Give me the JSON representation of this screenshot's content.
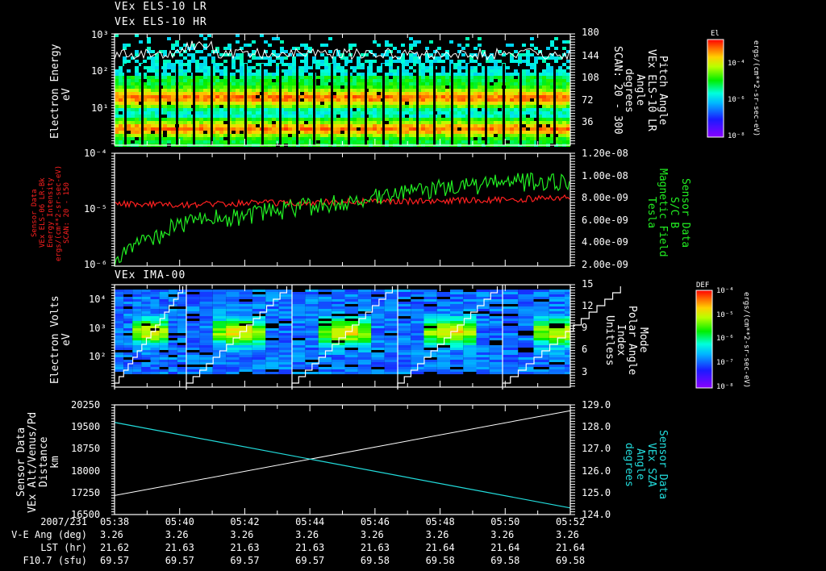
{
  "panels": [
    {
      "id": "els",
      "titles": [
        "VEx ELS-10 LR",
        "VEx ELS-10 HR"
      ],
      "left_axis": {
        "label_lines": [
          "Electron Energy",
          "eV"
        ],
        "ticks": [
          "10³",
          "10²",
          "10¹"
        ],
        "top_tick": "10³"
      },
      "right_axis": {
        "label_lines": [
          "Pitch Angle",
          "VEx ELS-10 LR",
          "Angle",
          "degrees",
          "SCAN: 20 - 300"
        ],
        "ticks": [
          "180",
          "144",
          "108",
          "72",
          "36"
        ]
      },
      "colorbar": {
        "title": "El",
        "ticks": [
          "10⁻⁴",
          "10⁻⁶",
          "10⁻⁸"
        ],
        "units": "ergs/(cm**2-sr-sec-eV)"
      }
    },
    {
      "id": "intensity-bfield",
      "left_axis": {
        "label_lines": [
          "Sensor Data",
          "VEx ELS-06 LR-Bk",
          "Energy Intensity",
          "ergs/(cm**2-sr-sec-eV)",
          "SCAN: 20 - 150"
        ],
        "ticks": [
          "10⁻⁴",
          "10⁻⁵",
          "10⁻⁶"
        ],
        "color": "#ff2020"
      },
      "right_axis": {
        "label_lines": [
          "Sensor Data",
          "S/C  B",
          "Magnetic Field",
          "Tesla"
        ],
        "ticks": [
          "1.20e-08",
          "1.00e-08",
          "8.00e-09",
          "6.00e-09",
          "4.00e-09",
          "2.00e-09"
        ],
        "color": "#22ee22"
      }
    },
    {
      "id": "ima",
      "titles": [
        "VEx IMA-00"
      ],
      "left_axis": {
        "label_lines": [
          "Electron Volts",
          "eV"
        ],
        "ticks": [
          "10⁴",
          "10³",
          "10²"
        ]
      },
      "right_axis": {
        "label_lines": [
          "Mode",
          "Polar Angle",
          "Index",
          "Unitless"
        ],
        "ticks": [
          "15",
          "12",
          "9",
          "6",
          "3"
        ]
      },
      "colorbar": {
        "title": "DEF",
        "ticks": [
          "10⁻⁴",
          "10⁻⁵",
          "10⁻⁶",
          "10⁻⁷",
          "10⁻⁸"
        ],
        "units": "ergs/(cm**2-sr-sec-eV)"
      }
    },
    {
      "id": "alt-sza",
      "left_axis": {
        "label_lines": [
          "Sensor Data",
          "VEx Alt/Venus/Pd",
          "Distance",
          "km"
        ],
        "ticks": [
          "20250",
          "19500",
          "18750",
          "18000",
          "17250",
          "16500"
        ]
      },
      "right_axis": {
        "label_lines": [
          "Sensor Data",
          "VEx SZA",
          "Angle",
          "degrees"
        ],
        "ticks": [
          "129.0",
          "128.0",
          "127.0",
          "126.0",
          "125.0",
          "124.0"
        ],
        "color": "#22dddd"
      }
    }
  ],
  "footer": {
    "rows": [
      {
        "label": "2007/231",
        "values": [
          "05:38",
          "05:40",
          "05:42",
          "05:44",
          "05:46",
          "05:48",
          "05:50",
          "05:52"
        ]
      },
      {
        "label": "V-E Ang (deg)",
        "values": [
          "3.26",
          "3.26",
          "3.26",
          "3.26",
          "3.26",
          "3.26",
          "3.26",
          "3.26"
        ]
      },
      {
        "label": "LST (hr)",
        "values": [
          "21.62",
          "21.63",
          "21.63",
          "21.63",
          "21.63",
          "21.64",
          "21.64",
          "21.64"
        ]
      },
      {
        "label": "F10.7 (sfu)",
        "values": [
          "69.57",
          "69.57",
          "69.57",
          "69.57",
          "69.58",
          "69.58",
          "69.58",
          "69.58"
        ]
      }
    ]
  },
  "chart_data": [
    {
      "type": "heatmap",
      "title": "VEx ELS-10 LR / VEx ELS-10 HR",
      "xlabel": "UT (2007/231)",
      "ylabel": "Electron Energy (eV)",
      "x": [
        "05:38",
        "05:40",
        "05:42",
        "05:44",
        "05:46",
        "05:48",
        "05:50",
        "05:52"
      ],
      "ylim": [
        1,
        1000
      ],
      "yscale": "log",
      "y2label": "Pitch Angle (degrees), VEx ELS-10 LR, SCAN: 20 - 300",
      "y2lim": [
        0,
        180
      ],
      "y2ticks": [
        36,
        72,
        108,
        144,
        180
      ],
      "colorbar": {
        "label": "El",
        "units": "ergs/(cm**2-sr-sec-eV)",
        "range": [
          1e-08,
          0.001
        ],
        "ticks": [
          0.0001,
          1e-06,
          1e-08
        ]
      },
      "features": "Intense flux bands near ~3 eV and ~20 eV; flux drops above ~100 eV; periodic black vertical gaps; white pitch-angle trace near 120-150 deg"
    },
    {
      "type": "line",
      "title": "Energy Intensity & Magnetic Field",
      "x": [
        "05:38",
        "05:40",
        "05:42",
        "05:44",
        "05:46",
        "05:48",
        "05:50",
        "05:52"
      ],
      "series": [
        {
          "name": "VEx ELS-06 LR-Bk Energy Intensity (ergs/(cm**2-sr-sec-eV)), SCAN 20-150",
          "axis": "left",
          "color": "#ff2020",
          "yscale": "log",
          "ylim": [
            1e-06,
            0.0001
          ],
          "values": [
            1.3e-05,
            1.2e-05,
            1.3e-05,
            1.35e-05,
            1.4e-05,
            1.45e-05,
            1.5e-05,
            1.65e-05
          ]
        },
        {
          "name": "S/C B Magnetic Field (Tesla)",
          "axis": "right",
          "color": "#22ee22",
          "ylim": [
            2e-09,
            1.2e-08
          ],
          "values": [
            2.5e-09,
            5.8e-09,
            6.5e-09,
            7.3e-09,
            8e-09,
            8.8e-09,
            9.5e-09,
            9.3e-09
          ]
        }
      ]
    },
    {
      "type": "heatmap",
      "title": "VEx IMA-00",
      "ylabel": "Electron Volts (eV)",
      "yscale": "log",
      "ylim": [
        10,
        40000
      ],
      "x": [
        "05:38",
        "05:40",
        "05:42",
        "05:44",
        "05:46",
        "05:48",
        "05:50",
        "05:52"
      ],
      "y2label": "Mode Polar Angle Index (Unitless)",
      "y2lim": [
        0,
        15
      ],
      "y2ticks": [
        3,
        6,
        9,
        12,
        15
      ],
      "colorbar": {
        "label": "DEF",
        "units": "ergs/(cm**2-sr-sec-eV)",
        "range": [
          1e-08,
          0.0001
        ],
        "ticks": [
          0.0001,
          1e-05,
          1e-06,
          1e-07,
          1e-08
        ]
      },
      "features": "Five ~3.2-minute sweep cycles with peak flux ~500-1000 eV near mid-cycle; white staircase polar-angle index 0->15 per cycle"
    },
    {
      "type": "line",
      "title": "Altitude & SZA",
      "x": [
        "05:38",
        "05:40",
        "05:42",
        "05:44",
        "05:46",
        "05:48",
        "05:50",
        "05:52"
      ],
      "series": [
        {
          "name": "VEx Alt/Venus/Pd Distance (km)",
          "axis": "left",
          "color": "#ffffff",
          "ylim": [
            16500,
            20250
          ],
          "values": [
            17150,
            17530,
            17910,
            18290,
            18670,
            19050,
            19430,
            19810
          ]
        },
        {
          "name": "VEx SZA Angle (degrees)",
          "axis": "right",
          "color": "#22dddd",
          "ylim": [
            124.0,
            129.0
          ],
          "values": [
            128.1,
            127.55,
            127.0,
            126.45,
            125.9,
            125.35,
            124.8,
            124.25
          ]
        }
      ]
    }
  ]
}
